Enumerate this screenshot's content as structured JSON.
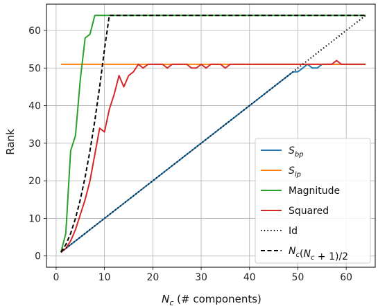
{
  "chart_data": {
    "type": "line",
    "title": "",
    "xlabel": "N_c (# components)",
    "ylabel": "Rank",
    "xlim": [
      -2,
      66
    ],
    "ylim": [
      -3,
      67
    ],
    "xticks": [
      0,
      10,
      20,
      30,
      40,
      50,
      60
    ],
    "yticks": [
      0,
      10,
      20,
      30,
      40,
      50,
      60
    ],
    "grid": true,
    "legend_position": "lower-right",
    "series": [
      {
        "name": "S_bp",
        "color": "#1f77b4",
        "dash": "solid",
        "x": [
          1,
          49,
          50,
          51,
          52,
          53,
          54,
          55,
          56,
          57,
          58,
          59,
          60,
          61,
          62,
          63,
          64
        ],
        "y": [
          1,
          49,
          49,
          50,
          51,
          50,
          50,
          51,
          51,
          51,
          51,
          51,
          51,
          51,
          51,
          51,
          51
        ]
      },
      {
        "name": "S_lp",
        "color": "#ff7f0e",
        "dash": "solid",
        "x": [
          1,
          64
        ],
        "y": [
          51,
          51
        ]
      },
      {
        "name": "Magnitude",
        "color": "#2ca02c",
        "dash": "solid",
        "x": [
          1,
          2,
          3,
          4,
          5,
          6,
          7,
          8,
          9,
          10,
          11,
          64
        ],
        "y": [
          1,
          6,
          28,
          32,
          47,
          58,
          59,
          64,
          64,
          64,
          64,
          64
        ]
      },
      {
        "name": "Squared",
        "color": "#d62728",
        "dash": "solid",
        "x": [
          1,
          2,
          3,
          4,
          5,
          6,
          7,
          8,
          9,
          10,
          11,
          12,
          13,
          14,
          15,
          16,
          17,
          18,
          19,
          20,
          21,
          22,
          23,
          24,
          25,
          26,
          27,
          28,
          29,
          30,
          31,
          32,
          33,
          34,
          35,
          36,
          37,
          38,
          39,
          40,
          41,
          42,
          43,
          44,
          45,
          46,
          47,
          48,
          49,
          50,
          51,
          52,
          53,
          54,
          55,
          56,
          57,
          58,
          59,
          60,
          61,
          62,
          63,
          64
        ],
        "y": [
          1,
          2,
          4,
          7,
          11,
          15,
          20,
          27,
          34,
          33,
          39,
          43,
          48,
          45,
          48,
          49,
          51,
          50,
          51,
          51,
          51,
          51,
          50,
          51,
          51,
          51,
          51,
          50,
          50,
          51,
          50,
          51,
          51,
          51,
          50,
          51,
          51,
          51,
          51,
          51,
          51,
          51,
          51,
          51,
          51,
          51,
          51,
          51,
          51,
          51,
          51,
          51,
          51,
          51,
          51,
          51,
          51,
          52,
          51,
          51,
          51,
          51,
          51,
          51
        ]
      },
      {
        "name": "Id",
        "color": "#000000",
        "dash": "dotted",
        "x": [
          1,
          64
        ],
        "y": [
          1,
          64
        ]
      },
      {
        "name": "N_c(N_c + 1)/2",
        "color": "#000000",
        "dash": "dashed",
        "x": [
          1,
          2,
          3,
          4,
          5,
          6,
          7,
          8,
          9,
          10,
          11,
          64
        ],
        "y": [
          1,
          3,
          6,
          10,
          15,
          21,
          28,
          36,
          45,
          55,
          64,
          64
        ]
      }
    ]
  }
}
